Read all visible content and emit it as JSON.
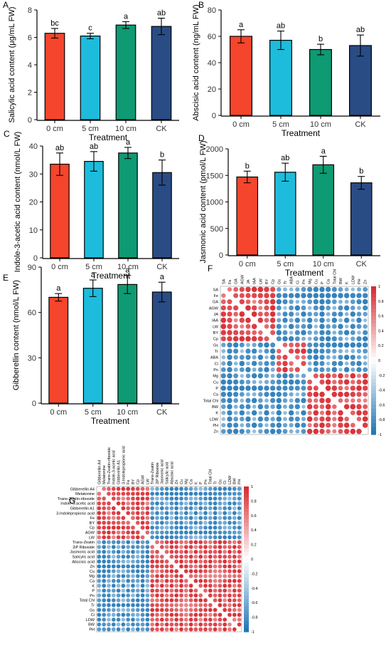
{
  "colors": {
    "bars": [
      "#F5452C",
      "#1DBCDC",
      "#0E9A73",
      "#2A4C85"
    ],
    "pos": "#D7282F",
    "neg": "#1C74B5"
  },
  "chart_data": [
    {
      "panel": "A",
      "type": "bar",
      "categories": [
        "0 cm",
        "5 cm",
        "10 cm",
        "CK"
      ],
      "values": [
        6.3,
        6.1,
        6.9,
        6.8
      ],
      "errors": [
        0.35,
        0.2,
        0.25,
        0.6
      ],
      "letters": [
        "bc",
        "c",
        "a",
        "ab"
      ],
      "xlabel": "Treatment",
      "ylabel": "Salicylic acid content (μg/mL FW)",
      "ylim": [
        0,
        8
      ],
      "yticks": [
        0,
        2,
        4,
        6,
        8
      ],
      "grid": false
    },
    {
      "panel": "B",
      "type": "bar",
      "categories": [
        "0 cm",
        "5 cm",
        "10 cm",
        "CK"
      ],
      "values": [
        60,
        57,
        50,
        53
      ],
      "errors": [
        5,
        7,
        4,
        8
      ],
      "letters": [
        "a",
        "ab",
        "b",
        "ab"
      ],
      "xlabel": "Treatment",
      "ylabel": "Abscisic acid content (ng/mL FW)",
      "ylim": [
        0,
        80
      ],
      "yticks": [
        0,
        20,
        40,
        60,
        80
      ],
      "grid": false
    },
    {
      "panel": "C",
      "type": "bar",
      "categories": [
        "0 cm",
        "5 cm",
        "10 cm",
        "CK"
      ],
      "values": [
        33.5,
        34.5,
        37.5,
        30.5
      ],
      "errors": [
        4,
        3.5,
        2,
        4.5
      ],
      "letters": [
        "ab",
        "ab",
        "a",
        "b"
      ],
      "xlabel": "Treatment",
      "ylabel": "Indole-3-acetic acid content (nmol/L FW)",
      "ylim": [
        0,
        40
      ],
      "yticks": [
        0,
        10,
        20,
        30,
        40
      ],
      "grid": false
    },
    {
      "panel": "D",
      "type": "bar",
      "categories": [
        "0 cm",
        "5 cm",
        "10 cm",
        "CK"
      ],
      "values": [
        1470,
        1560,
        1700,
        1360
      ],
      "errors": [
        110,
        170,
        160,
        120
      ],
      "letters": [
        "b",
        "ab",
        "a",
        "b"
      ],
      "xlabel": "Treatment",
      "ylabel": "Jasmonic acid content (pmol/L FW)",
      "ylim": [
        0,
        2000
      ],
      "yticks": [
        0,
        500,
        1000,
        1500,
        2000
      ],
      "grid": false
    },
    {
      "panel": "E",
      "type": "bar",
      "categories": [
        "0 cm",
        "5 cm",
        "10 cm",
        "CK"
      ],
      "values": [
        70,
        76,
        78.5,
        73.5
      ],
      "errors": [
        2.5,
        5.5,
        6,
        6.5
      ],
      "letters": [
        "a",
        "a",
        "a",
        "a"
      ],
      "xlabel": "Treatment",
      "ylabel": "Gibberellin content (nmol/L FW)",
      "ylim": [
        0,
        90
      ],
      "yticks": [
        0,
        30,
        60,
        90
      ],
      "grid": false
    },
    {
      "panel": "F",
      "type": "heatmap",
      "labels": [
        "SA",
        "Fe",
        "GA",
        "AGW",
        "JA",
        "IAA",
        "LW",
        "BY",
        "Cp",
        "Gs",
        "Tr",
        "ABA",
        "Ci",
        "Pn",
        "Mg",
        "Cu",
        "P",
        "Ca",
        "Total Chl",
        "BW",
        "K",
        "LDW",
        "PH",
        "Zn"
      ],
      "blocks": [
        [
          0,
          8
        ],
        [
          9,
          13
        ],
        [
          14,
          23
        ]
      ],
      "colorbar_ticks": [
        1,
        0.8,
        0.6,
        0.4,
        0.2,
        0,
        -0.2,
        -0.4,
        -0.6,
        -0.8,
        -1
      ],
      "scale": [
        -1,
        1
      ]
    },
    {
      "panel": "G",
      "type": "heatmap",
      "labels": [
        "Gibberellin A4",
        "Melatonine",
        "Trans-Zeatin-riboside",
        "Indole-3-acetic acid",
        "Gibberellin A1",
        "3-Indolepropionic acid",
        "Fe",
        "BY",
        "Cp",
        "AGW",
        "LW",
        "Trans-Zeatin",
        "2iP Riboside",
        "Jasmonic acid",
        "Salicylic acid",
        "Abscisic acid",
        "Zn",
        "Cu",
        "Mg",
        "Ca",
        "K",
        "P",
        "Pn",
        "Total Chl",
        "Tr",
        "Gs",
        "Ci",
        "LDW",
        "BW",
        "PH"
      ],
      "blocks": [
        [
          0,
          10
        ],
        [
          11,
          29
        ]
      ],
      "colorbar_ticks": [
        1,
        0.8,
        0.6,
        0.4,
        0.2,
        0,
        -0.2,
        -0.4,
        -0.6,
        -0.8,
        -1
      ],
      "scale": [
        -1,
        1
      ]
    }
  ]
}
